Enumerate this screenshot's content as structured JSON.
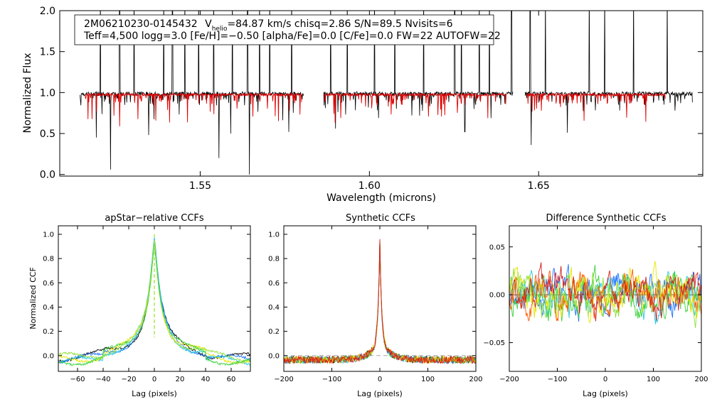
{
  "chart_data": [
    {
      "id": "spectrum",
      "type": "line",
      "xlabel": "Wavelength (microns)",
      "ylabel": "Normalized Flux",
      "xlim": [
        1.5085,
        1.6985
      ],
      "ylim": [
        -0.02,
        2.0
      ],
      "xticks": [
        1.55,
        1.6,
        1.65
      ],
      "xtick_labels": [
        "1.55",
        "1.60",
        "1.65"
      ],
      "yticks": [
        0.0,
        0.5,
        1.0,
        1.5,
        2.0
      ],
      "ytick_labels": [
        "0.0",
        "0.5",
        "1.0",
        "1.5",
        "2.0"
      ],
      "legend": {
        "line1_star": "2M06210230-0145432",
        "line1_v": "V",
        "line1_vsub": "helio",
        "line1_rest": "=84.87 km/s  chisq=2.86  S/N=89.5  Nvisits=6",
        "line2": "Teff=4,500 logg=3.0 [Fe/H]=−0.50 [alpha/Fe]=0.0 [C/Fe]=0.0 FW=22 AUTOFW=22"
      },
      "segments": [
        {
          "x0": 1.5145,
          "x1": 1.5805
        },
        {
          "x0": 1.5865,
          "x1": 1.6425
        },
        {
          "x0": 1.646,
          "x1": 1.6955
        }
      ],
      "model_segments": [
        {
          "x0": 1.516,
          "x1": 1.58
        },
        {
          "x0": 1.5865,
          "x1": 1.6405
        },
        {
          "x0": 1.6465,
          "x1": 1.6875
        }
      ],
      "spikes": [
        1.5205,
        1.5262,
        1.5305,
        1.5392,
        1.5418,
        1.5455,
        1.5495,
        1.554,
        1.5595,
        1.564,
        1.5675,
        1.5705,
        1.577,
        1.5885,
        1.5935,
        1.6015,
        1.6075,
        1.616,
        1.6252,
        1.6272,
        1.6325,
        1.6355,
        1.642,
        1.6475,
        1.652,
        1.665,
        1.6695,
        1.678,
        1.688
      ],
      "dips": [
        {
          "x": 1.5193,
          "y": 0.45
        },
        {
          "x": 1.5235,
          "y": 0.06
        },
        {
          "x": 1.5348,
          "y": 0.48
        },
        {
          "x": 1.5555,
          "y": 0.2
        },
        {
          "x": 1.559,
          "y": 0.5
        },
        {
          "x": 1.5645,
          "y": 0.0
        },
        {
          "x": 1.5762,
          "y": 0.52
        },
        {
          "x": 1.59,
          "y": 0.56
        },
        {
          "x": 1.6282,
          "y": 0.52
        },
        {
          "x": 1.6478,
          "y": 0.36
        },
        {
          "x": 1.6585,
          "y": 0.51
        }
      ]
    },
    {
      "id": "apstar_ccf",
      "type": "line",
      "title": "apStar−relative CCFs",
      "xlabel": "Lag (pixels)",
      "ylabel": "Normalized CCF",
      "xlim": [
        -75,
        75
      ],
      "ylim": [
        -0.13,
        1.07
      ],
      "xticks": [
        -60,
        -40,
        -20,
        0,
        20,
        40,
        60
      ],
      "xtick_labels": [
        "−60",
        "−40",
        "−20",
        "0",
        "20",
        "40",
        "60"
      ],
      "yticks": [
        0.0,
        0.2,
        0.4,
        0.6,
        0.8,
        1.0
      ],
      "ytick_labels": [
        "0.0",
        "0.2",
        "0.4",
        "0.6",
        "0.8",
        "1.0"
      ],
      "series": [
        {
          "name": "visit 1",
          "color": "#000000"
        },
        {
          "name": "visit 2",
          "color": "#1e73ff"
        },
        {
          "name": "visit 3",
          "color": "#22c8e6"
        },
        {
          "name": "visit 4",
          "color": "#8fe03c"
        },
        {
          "name": "visit 5",
          "color": "#e6e600"
        },
        {
          "name": "visit 6",
          "color": "#3cd23c"
        }
      ]
    },
    {
      "id": "synthetic_ccf",
      "type": "line",
      "title": "Synthetic CCFs",
      "xlabel": "Lag (pixels)",
      "xlim": [
        -200,
        200
      ],
      "ylim": [
        -0.13,
        1.07
      ],
      "xticks": [
        -200,
        -100,
        0,
        100,
        200
      ],
      "xtick_labels": [
        "−200",
        "−100",
        "0",
        "100",
        "200"
      ],
      "yticks": [
        0.0,
        0.2,
        0.4,
        0.6,
        0.8,
        1.0
      ],
      "ytick_labels": [
        "0.0",
        "0.2",
        "0.4",
        "0.6",
        "0.8",
        "1.0"
      ],
      "series": [
        {
          "name": "visit 1",
          "color": "#000000"
        },
        {
          "name": "visit 2",
          "color": "#1e73ff"
        },
        {
          "name": "visit 3",
          "color": "#22c8e6"
        },
        {
          "name": "visit 4",
          "color": "#3cd23c"
        },
        {
          "name": "visit 5",
          "color": "#e6e600"
        },
        {
          "name": "visit 6",
          "color": "#ff5a00"
        },
        {
          "name": "visit 7",
          "color": "#d21e1e"
        }
      ]
    },
    {
      "id": "difference_ccf",
      "type": "line",
      "title": "Difference Synthetic CCFs",
      "xlabel": "Lag (pixels)",
      "xlim": [
        -200,
        200
      ],
      "ylim": [
        -0.08,
        0.072
      ],
      "xticks": [
        -200,
        -100,
        0,
        100,
        200
      ],
      "xtick_labels": [
        "−200",
        "−100",
        "0",
        "100",
        "200"
      ],
      "yticks": [
        -0.05,
        0.0,
        0.05
      ],
      "ytick_labels": [
        "−0.05",
        "0.00",
        "0.05"
      ],
      "series": [
        {
          "name": "visit 1",
          "color": "#1e73ff"
        },
        {
          "name": "visit 2",
          "color": "#22c8e6"
        },
        {
          "name": "visit 3",
          "color": "#3cd23c"
        },
        {
          "name": "visit 4",
          "color": "#8fe03c"
        },
        {
          "name": "visit 5",
          "color": "#e6e600"
        },
        {
          "name": "visit 6",
          "color": "#ff5a00"
        },
        {
          "name": "visit 7",
          "color": "#d21e1e"
        }
      ]
    }
  ],
  "colors": {
    "data": "#000000",
    "model": "#e00000",
    "axes": "#000000"
  }
}
